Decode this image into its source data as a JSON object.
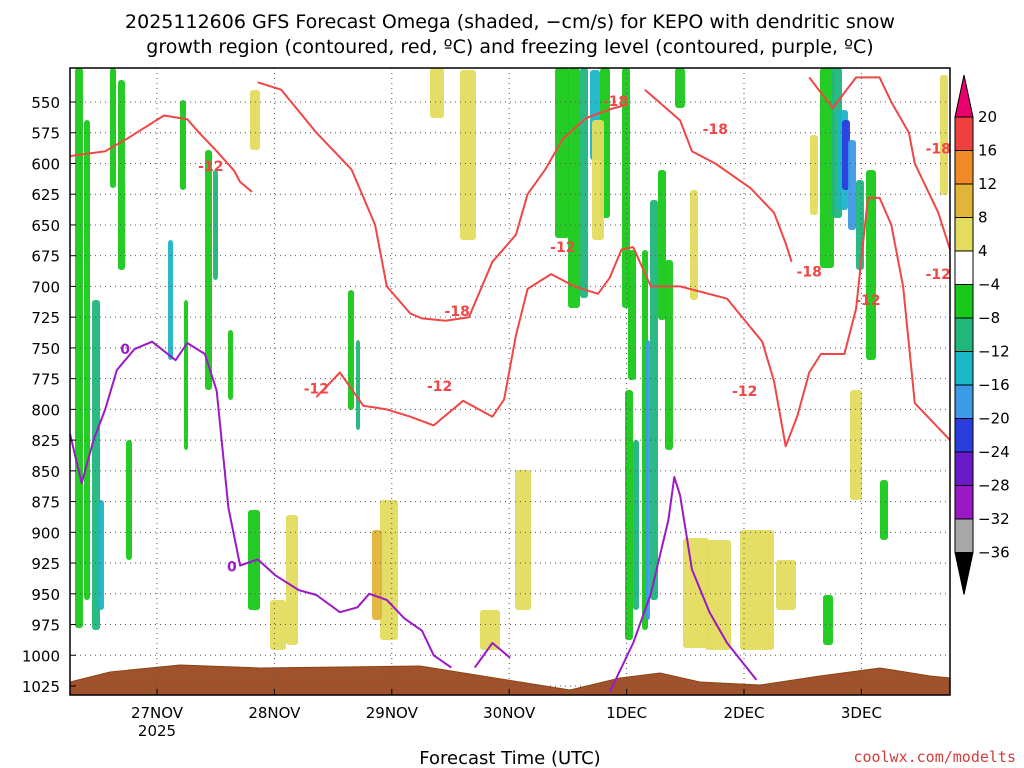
{
  "chart_data": {
    "type": "heatmap",
    "title_line1": "2025112606 GFS Forecast Omega (shaded, −cm/s) for KEPO with dendritic snow",
    "title_line2": "growth region (contoured, red, ºC) and freezing level (contoured, purple, ºC)",
    "xlabel": "Forecast Time (UTC)",
    "watermark": "coolwx.com/modelts",
    "x_ticks": [
      "27NOV",
      "28NOV",
      "29NOV",
      "30NOV",
      "1DEC",
      "2DEC",
      "3DEC"
    ],
    "x_year": "2025",
    "xlim": [
      0,
      7.5
    ],
    "ylim": [
      530,
      1037
    ],
    "y_ticks": [
      550,
      575,
      600,
      625,
      650,
      675,
      700,
      725,
      750,
      775,
      800,
      825,
      850,
      875,
      900,
      925,
      950,
      975,
      1000,
      1025
    ],
    "colorbar": {
      "levels": [
        20,
        16,
        12,
        8,
        4,
        -4,
        -8,
        -12,
        -16,
        -20,
        -24,
        -28,
        -32,
        -36
      ],
      "labels": [
        "20",
        "16",
        "12",
        "8",
        "4",
        "−4",
        "−8",
        "−12",
        "−16",
        "−20",
        "−24",
        "−28",
        "−32",
        "−36"
      ],
      "colors": [
        "#e8006c",
        "#ef4040",
        "#f08a28",
        "#e3b43a",
        "#e3dc5e",
        "#ffffff",
        "#19c919",
        "#20b67c",
        "#1cb6c6",
        "#3c9ae6",
        "#2a3ee0",
        "#6a1ac8",
        "#9a19c4",
        "#a8a8a8",
        "#000000"
      ]
    },
    "series": [
      {
        "name": "-12",
        "color": "#f04646",
        "label_positions": [
          [
            1.2,
            602
          ],
          [
            2.1,
            783
          ],
          [
            3.15,
            781
          ],
          [
            4.2,
            668
          ],
          [
            5.75,
            785
          ],
          [
            6.8,
            711
          ],
          [
            7.4,
            690
          ]
        ],
        "lines": [
          [
            [
              0,
              594
            ],
            [
              0.3,
              590
            ],
            [
              0.5,
              579
            ],
            [
              0.8,
              561
            ],
            [
              1.0,
              564
            ],
            [
              1.1,
              575
            ],
            [
              1.25,
              590
            ],
            [
              1.4,
              606
            ],
            [
              1.45,
              615
            ],
            [
              1.55,
              623
            ]
          ],
          [
            [
              2.1,
              790
            ],
            [
              2.3,
              770
            ],
            [
              2.5,
              797
            ],
            [
              2.7,
              800
            ],
            [
              2.9,
              806
            ],
            [
              3.1,
              813
            ],
            [
              3.35,
              793
            ],
            [
              3.6,
              806
            ],
            [
              3.7,
              792
            ],
            [
              3.8,
              740
            ],
            [
              3.9,
              702
            ],
            [
              4.1,
              690
            ],
            [
              4.3,
              700
            ],
            [
              4.5,
              706
            ],
            [
              4.6,
              693
            ],
            [
              4.7,
              670
            ],
            [
              4.8,
              668
            ],
            [
              4.95,
              700
            ],
            [
              5.2,
              700
            ],
            [
              5.6,
              710
            ],
            [
              5.9,
              745
            ],
            [
              6.0,
              777
            ],
            [
              6.1,
              830
            ],
            [
              6.2,
              805
            ],
            [
              6.3,
              770
            ],
            [
              6.4,
              755
            ],
            [
              6.6,
              755
            ],
            [
              6.7,
              718
            ],
            [
              6.8,
              628
            ],
            [
              6.9,
              628
            ],
            [
              7.0,
              650
            ],
            [
              7.1,
              700
            ],
            [
              7.2,
              795
            ],
            [
              7.5,
              825
            ]
          ]
        ]
      },
      {
        "name": "-18",
        "color": "#f04646",
        "label_positions": [
          [
            3.3,
            720
          ],
          [
            4.65,
            549
          ],
          [
            5.5,
            572
          ],
          [
            6.3,
            688
          ],
          [
            7.4,
            588
          ]
        ],
        "lines": [
          [
            [
              1.6,
              534
            ],
            [
              1.8,
              540
            ],
            [
              2.1,
              575
            ],
            [
              2.4,
              605
            ],
            [
              2.6,
              650
            ],
            [
              2.7,
              700
            ],
            [
              2.9,
              722
            ],
            [
              3.0,
              726
            ],
            [
              3.2,
              728
            ],
            [
              3.4,
              725
            ],
            [
              3.6,
              680
            ],
            [
              3.8,
              658
            ],
            [
              3.9,
              625
            ],
            [
              4.05,
              605
            ],
            [
              4.2,
              580
            ],
            [
              4.4,
              563
            ],
            [
              4.6,
              556
            ],
            [
              4.75,
              552
            ]
          ],
          [
            [
              4.9,
              540
            ],
            [
              5.2,
              565
            ],
            [
              5.3,
              590
            ],
            [
              5.5,
              600
            ],
            [
              5.8,
              620
            ],
            [
              6.0,
              640
            ],
            [
              6.1,
              665
            ],
            [
              6.15,
              680
            ]
          ],
          [
            [
              6.3,
              530
            ],
            [
              6.5,
              555
            ],
            [
              6.7,
              530
            ],
            [
              6.9,
              530
            ],
            [
              7.0,
              550
            ],
            [
              7.15,
              575
            ],
            [
              7.2,
              600
            ],
            [
              7.3,
              620
            ],
            [
              7.4,
              640
            ],
            [
              7.5,
              670
            ]
          ]
        ]
      },
      {
        "name": "0",
        "color": "#9b19c8",
        "label_positions": [
          [
            0.47,
            751
          ],
          [
            1.38,
            928
          ]
        ],
        "lines": [
          [
            [
              0,
              820
            ],
            [
              0.1,
              860
            ],
            [
              0.2,
              825
            ],
            [
              0.3,
              800
            ],
            [
              0.4,
              768
            ],
            [
              0.55,
              751
            ],
            [
              0.7,
              745
            ],
            [
              0.9,
              760
            ],
            [
              1.0,
              746
            ],
            [
              1.15,
              755
            ],
            [
              1.25,
              785
            ],
            [
              1.35,
              880
            ],
            [
              1.45,
              927
            ],
            [
              1.6,
              922
            ],
            [
              1.75,
              935
            ],
            [
              1.95,
              947
            ],
            [
              2.1,
              951
            ],
            [
              2.3,
              965
            ],
            [
              2.45,
              961
            ],
            [
              2.55,
              950
            ],
            [
              2.7,
              955
            ],
            [
              2.85,
              970
            ],
            [
              3.0,
              980
            ],
            [
              3.1,
              1000
            ],
            [
              3.25,
              1010
            ]
          ],
          [
            [
              3.45,
              1010
            ],
            [
              3.6,
              990
            ],
            [
              3.75,
              1002
            ]
          ],
          [
            [
              4.6,
              1030
            ],
            [
              4.8,
              990
            ],
            [
              4.95,
              950
            ],
            [
              5.1,
              890
            ],
            [
              5.15,
              855
            ],
            [
              5.2,
              870
            ],
            [
              5.3,
              930
            ],
            [
              5.45,
              965
            ],
            [
              5.6,
              990
            ],
            [
              5.85,
              1020
            ]
          ]
        ]
      }
    ]
  }
}
